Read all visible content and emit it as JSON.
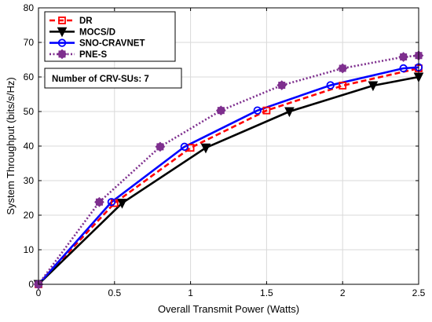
{
  "chart_data": {
    "type": "line",
    "xlabel": "Overall Transmit Power (Watts)",
    "ylabel": "System Throughput (bits/s/Hz)",
    "xlim": [
      0,
      2.5
    ],
    "ylim": [
      0,
      80
    ],
    "xticks": [
      0,
      0.5,
      1,
      1.5,
      2,
      2.5
    ],
    "xtick_labels": [
      "0",
      "0.5",
      "1",
      "1.5",
      "2",
      "2.5"
    ],
    "yticks": [
      0,
      10,
      20,
      30,
      40,
      50,
      60,
      70,
      80
    ],
    "ytick_labels": [
      "0",
      "10",
      "20",
      "30",
      "40",
      "50",
      "60",
      "70",
      "80"
    ],
    "grid": true,
    "legend_position": "top-left",
    "annotation": "Number of CRV-SUs: 7",
    "series": [
      {
        "name": "DR",
        "color": "#ff0000",
        "line_style": "dashed",
        "marker": "square",
        "x": [
          0,
          0.5,
          1.0,
          1.5,
          2.0,
          2.5
        ],
        "y": [
          0,
          23.5,
          39.5,
          50.3,
          57.5,
          62.5
        ]
      },
      {
        "name": "MOCS/D",
        "color": "#000000",
        "line_style": "solid",
        "marker": "triangle-down",
        "x": [
          0,
          0.55,
          1.1,
          1.65,
          2.2,
          2.5
        ],
        "y": [
          0,
          23.5,
          39.5,
          50.0,
          57.5,
          60.0
        ]
      },
      {
        "name": "SNO-CRAVNET",
        "color": "#0000ff",
        "line_style": "solid",
        "marker": "circle",
        "x": [
          0,
          0.48,
          0.96,
          1.44,
          1.92,
          2.4,
          2.5
        ],
        "y": [
          0,
          23.8,
          39.8,
          50.3,
          57.6,
          62.5,
          62.8
        ]
      },
      {
        "name": "PNE-S",
        "color": "#7e2f8e",
        "line_style": "dotted",
        "marker": "star",
        "x": [
          0,
          0.4,
          0.8,
          1.2,
          1.6,
          2.0,
          2.4,
          2.5
        ],
        "y": [
          0,
          23.8,
          39.8,
          50.3,
          57.6,
          62.5,
          65.8,
          66.2
        ]
      }
    ]
  }
}
